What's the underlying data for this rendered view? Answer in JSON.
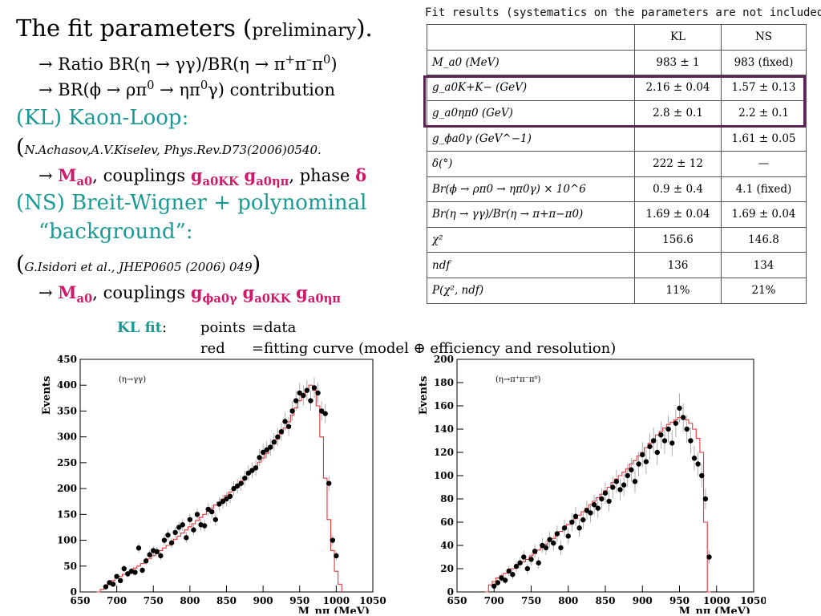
{
  "slide": {
    "title_main": "The fit parameters (",
    "title_small": "preliminary",
    "title_end": ").",
    "b1": "→ Ratio BR(η → γγ)/BR(η → π",
    "b1_sup1": "+",
    "b1_mid": "π",
    "b1_sup2": "–",
    "b1_mid2": "π",
    "b1_sup3": "0",
    "b1_end": ")",
    "b2": "→ BR(ϕ → ρπ",
    "b2_sup1": "0",
    "b2_mid": " → ηπ",
    "b2_sup2": "0",
    "b2_end": "γ) contribution",
    "kl_heading": "(KL) Kaon-Loop:",
    "kl_cite_open": "(",
    "kl_cite": "N.Achasov,A.V.Kiselev, Phys.Rev.D73(2006)0540.",
    "kl_arrow": "→ ",
    "M": "M",
    "a0": "a0",
    "kl_couplings": ", couplings ",
    "g": "g",
    "a0KK": "a0KK",
    "a0etapi": "a0ηπ",
    "kl_phase": ", phase ",
    "delta": "δ",
    "ns_heading_1": "(NS) Breit-Wigner + polynominal",
    "ns_heading_2": "“background”:",
    "ns_cite_open": "(",
    "ns_cite": "G.Isidori et al., JHEP0605 (2006) 049",
    "ns_cite_close": ")",
    "ns_arrow": "→ ",
    "ns_couplings": ", couplings ",
    "phia0g": "ϕa0γ",
    "kl_fit_label": "KL fit",
    "colon": ":",
    "points_label": "points",
    "points_def": "=data",
    "red_label": "red",
    "red_def": "=fitting curve (model ⊕ efficiency and resolution)"
  },
  "table": {
    "caption": "Fit results (systematics on the parameters are not included).",
    "headers": [
      "",
      "KL",
      "NS"
    ],
    "rows": [
      [
        "M_a0 (MeV)",
        "983 ± 1",
        "983 (fixed)"
      ],
      [
        "g_a0K+K− (GeV)",
        "2.16 ± 0.04",
        "1.57 ± 0.13"
      ],
      [
        "g_a0ηπ0 (GeV)",
        "2.8 ± 0.1",
        "2.2 ± 0.1"
      ],
      [
        "g_ϕa0γ (GeV^−1)",
        "",
        "1.61 ± 0.05"
      ],
      [
        "δ(°)",
        "222 ± 12",
        "—"
      ],
      [
        "Br(ϕ → ρπ0 → ηπ0γ) × 10^6",
        "0.9 ± 0.4",
        "4.1 (fixed)"
      ],
      [
        "Br(η → γγ)/Br(η → π+π−π0)",
        "1.69 ± 0.04",
        "1.69 ± 0.04"
      ],
      [
        "χ²",
        "156.6",
        "146.8"
      ],
      [
        "ndf",
        "136",
        "134"
      ],
      [
        "P(χ², ndf)",
        "11%",
        "21%"
      ]
    ]
  },
  "chart_data": [
    {
      "type": "scatter",
      "annotation": "(η→γγ)",
      "ylabel": "Events",
      "xlabel": "M_ηπ (MeV)",
      "xlim": [
        650,
        1050
      ],
      "ylim": [
        0,
        450
      ],
      "xticks": [
        650,
        700,
        750,
        800,
        850,
        900,
        950,
        1000,
        1050
      ],
      "yticks": [
        0,
        50,
        100,
        150,
        200,
        250,
        300,
        350,
        400,
        450
      ],
      "series": [
        {
          "role": "points",
          "x": [
            685,
            690,
            695,
            700,
            705,
            710,
            715,
            720,
            725,
            730,
            735,
            740,
            745,
            750,
            755,
            760,
            765,
            770,
            775,
            780,
            785,
            790,
            795,
            800,
            805,
            810,
            815,
            820,
            825,
            830,
            835,
            840,
            845,
            850,
            855,
            860,
            865,
            870,
            875,
            880,
            885,
            890,
            895,
            900,
            905,
            910,
            915,
            920,
            925,
            930,
            935,
            940,
            945,
            950,
            955,
            960,
            965,
            970,
            975,
            980,
            985,
            990,
            995,
            1000
          ],
          "y": [
            10,
            18,
            15,
            30,
            22,
            45,
            35,
            40,
            38,
            85,
            42,
            60,
            72,
            80,
            78,
            70,
            100,
            110,
            95,
            115,
            125,
            130,
            105,
            140,
            120,
            150,
            130,
            128,
            160,
            155,
            140,
            170,
            175,
            180,
            185,
            200,
            205,
            210,
            220,
            230,
            235,
            240,
            260,
            270,
            275,
            280,
            290,
            300,
            310,
            330,
            320,
            350,
            370,
            385,
            380,
            390,
            370,
            395,
            385,
            350,
            345,
            210,
            100,
            70
          ]
        },
        {
          "role": "fit",
          "x": [
            675,
            680,
            685,
            690,
            695,
            700,
            705,
            710,
            715,
            720,
            725,
            730,
            735,
            740,
            745,
            750,
            755,
            760,
            765,
            770,
            775,
            780,
            785,
            790,
            795,
            800,
            805,
            810,
            815,
            820,
            825,
            830,
            835,
            840,
            845,
            850,
            855,
            860,
            865,
            870,
            875,
            880,
            885,
            890,
            895,
            900,
            905,
            910,
            915,
            920,
            925,
            930,
            935,
            940,
            945,
            950,
            955,
            960,
            965,
            970,
            975,
            980,
            985,
            990,
            995,
            1000,
            1005
          ],
          "y": [
            0,
            5,
            12,
            18,
            22,
            27,
            30,
            34,
            38,
            42,
            46,
            50,
            55,
            60,
            64,
            70,
            74,
            80,
            85,
            90,
            95,
            102,
            108,
            114,
            120,
            126,
            132,
            138,
            144,
            150,
            156,
            162,
            168,
            174,
            180,
            187,
            193,
            200,
            207,
            214,
            221,
            228,
            235,
            243,
            251,
            259,
            268,
            277,
            286,
            296,
            306,
            317,
            329,
            342,
            356,
            370,
            382,
            392,
            400,
            390,
            360,
            300,
            220,
            140,
            80,
            40,
            15
          ]
        }
      ]
    },
    {
      "type": "scatter",
      "annotation": "(η→π⁺π⁻π⁰)",
      "ylabel": "Events",
      "xlabel": "M_ηπ (MeV)",
      "xlim": [
        650,
        1050
      ],
      "ylim": [
        0,
        200
      ],
      "xticks": [
        650,
        700,
        750,
        800,
        850,
        900,
        950,
        1000,
        1050
      ],
      "yticks": [
        0,
        20,
        40,
        60,
        80,
        100,
        120,
        140,
        160,
        180,
        200
      ],
      "series": [
        {
          "role": "points",
          "x": [
            700,
            705,
            710,
            715,
            720,
            725,
            730,
            735,
            740,
            745,
            750,
            755,
            760,
            765,
            770,
            775,
            780,
            785,
            790,
            795,
            800,
            805,
            810,
            815,
            820,
            825,
            830,
            835,
            840,
            845,
            850,
            855,
            860,
            865,
            870,
            875,
            880,
            885,
            890,
            895,
            900,
            905,
            910,
            915,
            920,
            925,
            930,
            935,
            940,
            945,
            950,
            955,
            960,
            965,
            970,
            975,
            980,
            985,
            990
          ],
          "y": [
            5,
            8,
            12,
            10,
            18,
            15,
            22,
            25,
            30,
            20,
            28,
            35,
            25,
            40,
            38,
            45,
            42,
            50,
            38,
            55,
            48,
            60,
            65,
            55,
            62,
            70,
            68,
            75,
            72,
            80,
            85,
            78,
            90,
            95,
            88,
            92,
            100,
            105,
            95,
            110,
            118,
            112,
            125,
            130,
            120,
            135,
            130,
            140,
            128,
            145,
            158,
            150,
            140,
            130,
            115,
            110,
            100,
            80,
            30
          ]
        },
        {
          "role": "fit",
          "x": [
            690,
            695,
            700,
            705,
            710,
            715,
            720,
            725,
            730,
            735,
            740,
            745,
            750,
            755,
            760,
            765,
            770,
            775,
            780,
            785,
            790,
            795,
            800,
            805,
            810,
            815,
            820,
            825,
            830,
            835,
            840,
            845,
            850,
            855,
            860,
            865,
            870,
            875,
            880,
            885,
            890,
            895,
            900,
            905,
            910,
            915,
            920,
            925,
            930,
            935,
            940,
            945,
            950,
            955,
            960,
            965,
            970,
            975,
            980,
            985,
            990
          ],
          "y": [
            0,
            6,
            9,
            12,
            14,
            16,
            18,
            20,
            22,
            24,
            26,
            28,
            31,
            33,
            36,
            38,
            41,
            44,
            46,
            49,
            52,
            55,
            58,
            61,
            63,
            66,
            69,
            72,
            75,
            78,
            81,
            84,
            87,
            90,
            94,
            97,
            100,
            103,
            106,
            110,
            113,
            117,
            120,
            124,
            128,
            131,
            135,
            138,
            141,
            144,
            146,
            148,
            150,
            150,
            148,
            145,
            140,
            132,
            120,
            60,
            0
          ]
        }
      ]
    }
  ]
}
